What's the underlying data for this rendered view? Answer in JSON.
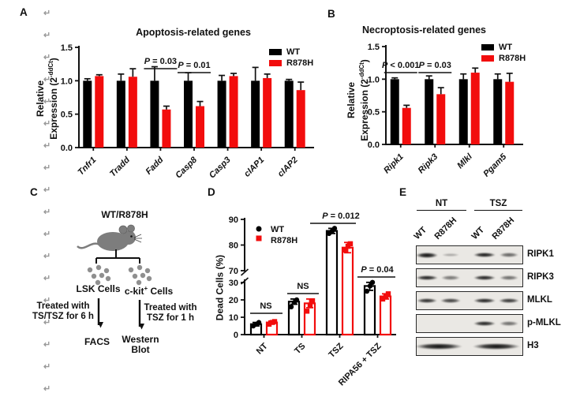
{
  "colors": {
    "wt": "#000000",
    "r878h": "#f20d0d",
    "mouse_gray": "#7d7d7d",
    "cell_gray": "#8f8f8f",
    "blot_bg": "#eae8e4"
  },
  "paragraph_marks": {
    "glyph": "↵",
    "count": 18
  },
  "panels": {
    "a": {
      "label": "A"
    },
    "b": {
      "label": "B"
    },
    "c": {
      "label": "C",
      "diagram": {
        "source_label": "WT/R878H",
        "left_cells": "LSK Cells",
        "right_cells_pre": "c-kit",
        "right_cells_sup": "+",
        "right_cells_post": " Cells",
        "left_treatment_line1": "Treated with",
        "left_treatment_line2": "TS/TSZ for 6 h",
        "right_treatment_line1": "Treated with",
        "right_treatment_line2": "TSZ for 1 h",
        "left_output": "FACS",
        "right_output_line1": "Western",
        "right_output_line2": "Blot"
      }
    },
    "d": {
      "label": "D"
    },
    "e": {
      "label": "E",
      "blot": {
        "groups": [
          "NT",
          "TSZ"
        ],
        "lanes": [
          "WT",
          "R878H",
          "WT",
          "R878H"
        ],
        "rows": [
          {
            "label": "RIPK1",
            "intensities": [
              1.0,
              0.18,
              0.95,
              0.55
            ]
          },
          {
            "label": "RIPK3",
            "intensities": [
              0.9,
              0.45,
              0.9,
              0.5
            ]
          },
          {
            "label": "MLKL",
            "intensities": [
              0.85,
              0.75,
              0.9,
              0.8
            ]
          },
          {
            "label": "p-MLKL",
            "intensities": [
              0,
              0,
              0.9,
              0.5
            ]
          },
          {
            "label": "H3",
            "wide": true,
            "intensities": [
              1,
              1,
              1,
              1
            ]
          }
        ]
      }
    }
  },
  "chart_data": [
    {
      "type": "bar",
      "title": "Apoptosis-related genes",
      "ylabel": {
        "line1": "Relative",
        "line2_pre": "Expression (2",
        "line2_sup": "-ddCt",
        "line2_post": ")"
      },
      "categories": [
        "Tnfr1",
        "Tradd",
        "Fadd",
        "Casp8",
        "Casp3",
        "cIAP1",
        "cIAP2"
      ],
      "italic_categories": true,
      "ylim": [
        0,
        1.5
      ],
      "yticks": [
        "0.0",
        "0.5",
        "1.0",
        "1.5"
      ],
      "grid": false,
      "legend_position": "top-right",
      "series": [
        {
          "name": "WT",
          "color": "#000000",
          "values": [
            1.0,
            1.0,
            1.0,
            1.0,
            1.0,
            1.0,
            1.0
          ],
          "errors": [
            0.03,
            0.1,
            0.21,
            0.12,
            0.08,
            0.2,
            0.02
          ]
        },
        {
          "name": "R878H",
          "color": "#f20d0d",
          "values": [
            1.07,
            1.06,
            0.57,
            0.62,
            1.07,
            1.04,
            0.86
          ],
          "errors": [
            0.02,
            0.12,
            0.05,
            0.07,
            0.04,
            0.06,
            0.12
          ]
        }
      ],
      "annotations": [
        {
          "text": "P = 0.03",
          "group": 2
        },
        {
          "text": "P = 0.01",
          "group": 3
        }
      ]
    },
    {
      "type": "bar",
      "title": "Necroptosis-related genes",
      "ylabel": {
        "line1": "Relative",
        "line2_pre": "Expression (2",
        "line2_sup": "-ddCt",
        "line2_post": ")"
      },
      "categories": [
        "Ripk1",
        "Ripk3",
        "Mlkl",
        "Pgam5"
      ],
      "italic_categories": true,
      "ylim": [
        0,
        1.5
      ],
      "yticks": [
        "0.0",
        "0.5",
        "1.0",
        "1.5"
      ],
      "grid": false,
      "legend_position": "top-right",
      "series": [
        {
          "name": "WT",
          "color": "#000000",
          "values": [
            1.0,
            1.0,
            1.0,
            1.0
          ],
          "errors": [
            0.02,
            0.05,
            0.08,
            0.08
          ]
        },
        {
          "name": "R878H",
          "color": "#f20d0d",
          "values": [
            0.56,
            0.77,
            1.1,
            0.96
          ],
          "errors": [
            0.04,
            0.1,
            0.07,
            0.13
          ]
        }
      ],
      "annotations": [
        {
          "text": "P < 0.001",
          "group": 0
        },
        {
          "text": "P = 0.03",
          "group": 1
        }
      ]
    },
    {
      "type": "bar",
      "subtype": "scatter-bar-broken-axis",
      "ylabel": "Dead Cells (%)",
      "categories": [
        "NT",
        "TS",
        "TSZ",
        "RIPA56 + TSZ"
      ],
      "axis_break": {
        "lower": [
          0,
          30
        ],
        "upper": [
          70,
          90
        ]
      },
      "yticks_lower": [
        "0",
        "10",
        "20",
        "30"
      ],
      "yticks_upper": [
        "70",
        "80",
        "90"
      ],
      "legend_position": "top-left",
      "series": [
        {
          "name": "WT",
          "color": "#000000",
          "marker": "circle",
          "means": [
            6,
            19,
            85.5,
            28
          ],
          "errors": [
            1,
            1.5,
            1,
            2.5
          ],
          "points": [
            [
              5,
              6,
              7
            ],
            [
              16,
              18.5,
              20
            ],
            [
              84.5,
              85.5,
              86.5
            ],
            [
              25,
              28,
              30.5
            ]
          ]
        },
        {
          "name": "R878H",
          "color": "#f20d0d",
          "marker": "square",
          "means": [
            7,
            18,
            79,
            22
          ],
          "errors": [
            0.8,
            2.5,
            2,
            1.5
          ],
          "points": [
            [
              6,
              7,
              7.5
            ],
            [
              13.5,
              17,
              19.5
            ],
            [
              78,
              79.5,
              80.5
            ],
            [
              20.5,
              22,
              23.5
            ]
          ]
        }
      ],
      "annotations": [
        {
          "text": "NS",
          "group": 0
        },
        {
          "text": "NS",
          "group": 1
        },
        {
          "text": "P = 0.012",
          "group": 2
        },
        {
          "text": "P = 0.04",
          "group": 3
        }
      ]
    }
  ]
}
